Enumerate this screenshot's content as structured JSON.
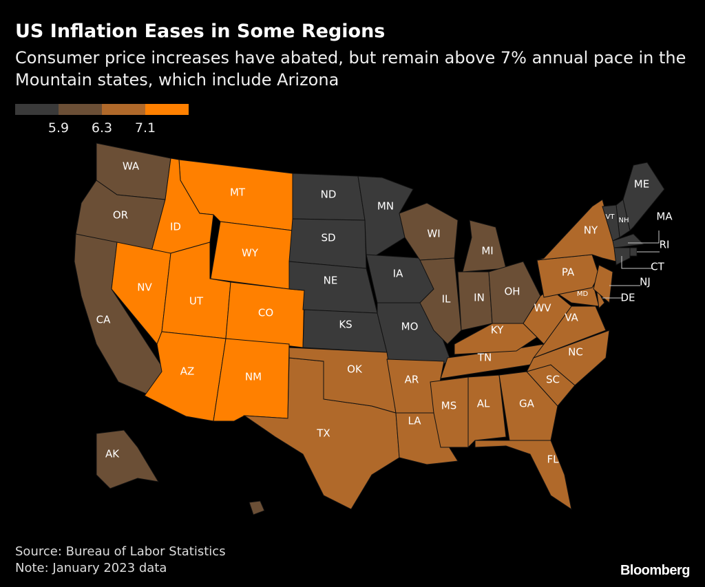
{
  "title": "US Inflation Eases in Some Regions",
  "subtitle": "Consumer price increases have abated, but remain above 7% annual pace in the Mountain states, which include Arizona",
  "legend": {
    "colors": [
      "#3a3a3a",
      "#6b4f36",
      "#b0692a",
      "#ff8000"
    ],
    "thresholds": [
      "5.9",
      "6.3",
      "7.1"
    ]
  },
  "states": [
    {
      "abbr": "WA",
      "bin": 1
    },
    {
      "abbr": "OR",
      "bin": 1
    },
    {
      "abbr": "CA",
      "bin": 1
    },
    {
      "abbr": "AK",
      "bin": 1
    },
    {
      "abbr": "HI",
      "bin": 1
    },
    {
      "abbr": "MT",
      "bin": 3
    },
    {
      "abbr": "ID",
      "bin": 3
    },
    {
      "abbr": "WY",
      "bin": 3
    },
    {
      "abbr": "NV",
      "bin": 3
    },
    {
      "abbr": "UT",
      "bin": 3
    },
    {
      "abbr": "CO",
      "bin": 3
    },
    {
      "abbr": "AZ",
      "bin": 3
    },
    {
      "abbr": "NM",
      "bin": 3
    },
    {
      "abbr": "ND",
      "bin": 0
    },
    {
      "abbr": "SD",
      "bin": 0
    },
    {
      "abbr": "NE",
      "bin": 0
    },
    {
      "abbr": "KS",
      "bin": 0
    },
    {
      "abbr": "MN",
      "bin": 0
    },
    {
      "abbr": "IA",
      "bin": 0
    },
    {
      "abbr": "MO",
      "bin": 0
    },
    {
      "abbr": "WI",
      "bin": 1
    },
    {
      "abbr": "MI",
      "bin": 1
    },
    {
      "abbr": "IL",
      "bin": 1
    },
    {
      "abbr": "IN",
      "bin": 1
    },
    {
      "abbr": "OH",
      "bin": 1
    },
    {
      "abbr": "TX",
      "bin": 2
    },
    {
      "abbr": "OK",
      "bin": 2
    },
    {
      "abbr": "AR",
      "bin": 2
    },
    {
      "abbr": "LA",
      "bin": 2
    },
    {
      "abbr": "MS",
      "bin": 2
    },
    {
      "abbr": "AL",
      "bin": 2
    },
    {
      "abbr": "TN",
      "bin": 2
    },
    {
      "abbr": "KY",
      "bin": 2
    },
    {
      "abbr": "GA",
      "bin": 2
    },
    {
      "abbr": "FL",
      "bin": 2
    },
    {
      "abbr": "SC",
      "bin": 2
    },
    {
      "abbr": "NC",
      "bin": 2
    },
    {
      "abbr": "VA",
      "bin": 2
    },
    {
      "abbr": "WV",
      "bin": 2
    },
    {
      "abbr": "MD",
      "bin": 2
    },
    {
      "abbr": "DE",
      "bin": 2
    },
    {
      "abbr": "PA",
      "bin": 2
    },
    {
      "abbr": "NY",
      "bin": 2
    },
    {
      "abbr": "NJ",
      "bin": 2
    },
    {
      "abbr": "ME",
      "bin": 0
    },
    {
      "abbr": "NH",
      "bin": 0
    },
    {
      "abbr": "VT",
      "bin": 0
    },
    {
      "abbr": "MA",
      "bin": 0
    },
    {
      "abbr": "CT",
      "bin": 0
    },
    {
      "abbr": "RI",
      "bin": 0
    }
  ],
  "footer": {
    "source": "Source: Bureau of Labor Statistics",
    "note": "Note: January 2023 data",
    "logo": "Bloomberg"
  }
}
